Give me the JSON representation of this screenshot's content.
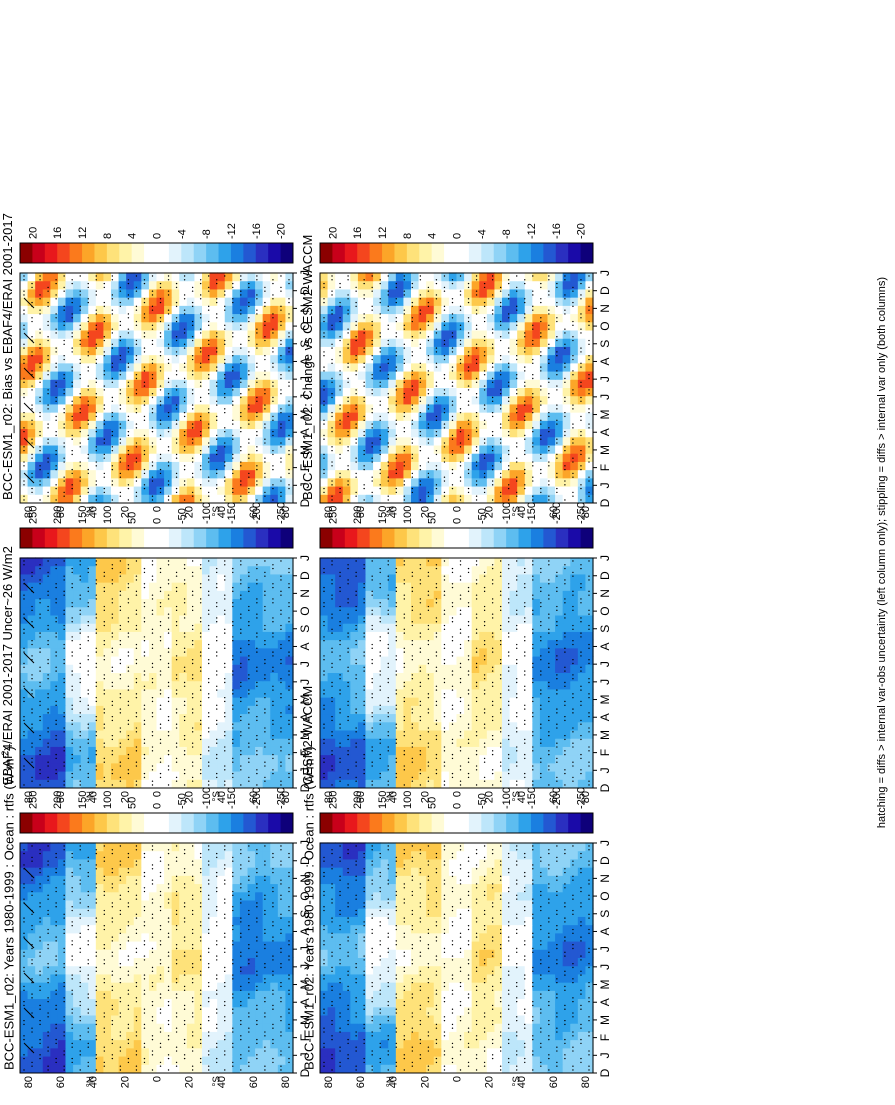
{
  "footnote": "hatching = diffs > internal var-obs uncertainty (left column only); stippling = diffs > internal var only (both columns)",
  "chart_data": [
    {
      "id": "left-top",
      "type": "heatmap",
      "title": "BCC-ESM1_r02: Years 1980-1999 : Ocean : rtfs (W m",
      "title_super": "-2",
      "title_suffix": ")",
      "variable": "rtfs",
      "units": "W m-2",
      "months": [
        "D",
        "J",
        "F",
        "M",
        "A",
        "M",
        "J",
        "J",
        "A",
        "S",
        "O",
        "N",
        "D",
        "J"
      ],
      "latitude_ticks": [
        "80",
        "60",
        "40",
        "20",
        "0",
        "20",
        "40",
        "60",
        "80"
      ],
      "hemisphere_labels": [
        "°N",
        "°S"
      ],
      "colorbar_ticks": [
        "250",
        "200",
        "150",
        "100",
        "50",
        "0",
        "-50",
        "-100",
        "-150",
        "-200",
        "-250"
      ],
      "colorbar_range": [
        -275,
        275
      ],
      "stippling": true,
      "hatching": true
    },
    {
      "id": "right-top",
      "type": "heatmap",
      "title": "BCC-ESM1_r02: Years 1980-1999 : Ocean : rtfs (W m",
      "title_super": "-2",
      "title_suffix": ")",
      "variable": "rtfs",
      "units": "W m-2",
      "months": [
        "D",
        "J",
        "F",
        "M",
        "A",
        "M",
        "J",
        "J",
        "A",
        "S",
        "O",
        "N",
        "D",
        "J"
      ],
      "latitude_ticks": [
        "80",
        "60",
        "40",
        "20",
        "0",
        "20",
        "40",
        "60",
        "80"
      ],
      "hemisphere_labels": [
        "°N",
        "°S"
      ],
      "colorbar_ticks": [
        "250",
        "200",
        "150",
        "100",
        "50",
        "0",
        "-50",
        "-100",
        "-150",
        "-200",
        "-250"
      ],
      "colorbar_range": [
        -275,
        275
      ],
      "stippling": true,
      "hatching": false
    },
    {
      "id": "left-middle",
      "type": "heatmap",
      "title": "EBAF4/ERAI 2001-2017 Uncer~26 W/m2",
      "months": [
        "D",
        "J",
        "F",
        "M",
        "A",
        "M",
        "J",
        "J",
        "A",
        "S",
        "O",
        "N",
        "D",
        "J"
      ],
      "latitude_ticks": [
        "80",
        "60",
        "40",
        "20",
        "0",
        "20",
        "40",
        "60",
        "80"
      ],
      "hemisphere_labels": [
        "°N",
        "°S"
      ],
      "colorbar_ticks": [
        "250",
        "200",
        "150",
        "100",
        "50",
        "0",
        "-50",
        "-100",
        "-150",
        "-200",
        "-250"
      ],
      "colorbar_range": [
        -275,
        275
      ],
      "stippling": true,
      "hatching": true
    },
    {
      "id": "right-middle",
      "type": "heatmap",
      "title": "CESM2-WACCM",
      "months": [
        "D",
        "J",
        "F",
        "M",
        "A",
        "M",
        "J",
        "J",
        "A",
        "S",
        "O",
        "N",
        "D",
        "J"
      ],
      "latitude_ticks": [
        "80",
        "60",
        "40",
        "20",
        "0",
        "20",
        "40",
        "60",
        "80"
      ],
      "hemisphere_labels": [
        "°N",
        "°S"
      ],
      "colorbar_ticks": [
        "250",
        "200",
        "150",
        "100",
        "50",
        "0",
        "-50",
        "-100",
        "-150",
        "-200",
        "-250"
      ],
      "colorbar_range": [
        -275,
        275
      ],
      "stippling": true,
      "hatching": false
    },
    {
      "id": "left-bottom",
      "type": "heatmap",
      "title": "BCC-ESM1_r02: Bias vs EBAF4/ERAI 2001-2017",
      "months": [
        "D",
        "J",
        "F",
        "M",
        "A",
        "M",
        "J",
        "J",
        "A",
        "S",
        "O",
        "N",
        "D",
        "J"
      ],
      "latitude_ticks": [
        "80",
        "60",
        "40",
        "20",
        "0",
        "20",
        "40",
        "60",
        "80"
      ],
      "hemisphere_labels": [
        "°N",
        "°S"
      ],
      "colorbar_ticks": [
        "20",
        "16",
        "12",
        "8",
        "4",
        "0",
        "-4",
        "-8",
        "-12",
        "-16",
        "-20"
      ],
      "colorbar_range": [
        -22,
        22
      ],
      "stippling": true,
      "hatching": true
    },
    {
      "id": "right-bottom",
      "type": "heatmap",
      "title": "BCC-ESM1_r02: Change vs CESM2-WACCM",
      "months": [
        "D",
        "J",
        "F",
        "M",
        "A",
        "M",
        "J",
        "J",
        "A",
        "S",
        "O",
        "N",
        "D",
        "J"
      ],
      "latitude_ticks": [
        "80",
        "60",
        "40",
        "20",
        "0",
        "20",
        "40",
        "60",
        "80"
      ],
      "hemisphere_labels": [
        "°N",
        "°S"
      ],
      "colorbar_ticks": [
        "20",
        "16",
        "12",
        "8",
        "4",
        "0",
        "-4",
        "-8",
        "-12",
        "-16",
        "-20"
      ],
      "colorbar_range": [
        -22,
        22
      ],
      "stippling": true,
      "hatching": false
    }
  ],
  "colors": {
    "colorbar": [
      "#8b0000",
      "#c8001a",
      "#e8181c",
      "#f4461e",
      "#fb7a1c",
      "#fca528",
      "#fdc84a",
      "#fee27a",
      "#fff3a8",
      "#fffbd6",
      "#ffffff",
      "#ffffff",
      "#e2f3fc",
      "#bde6fa",
      "#8fd3f6",
      "#5dbdf0",
      "#2ea2ea",
      "#1a7fe0",
      "#2358d2",
      "#2a2fc0",
      "#1a0aa8",
      "#0e007a"
    ]
  }
}
